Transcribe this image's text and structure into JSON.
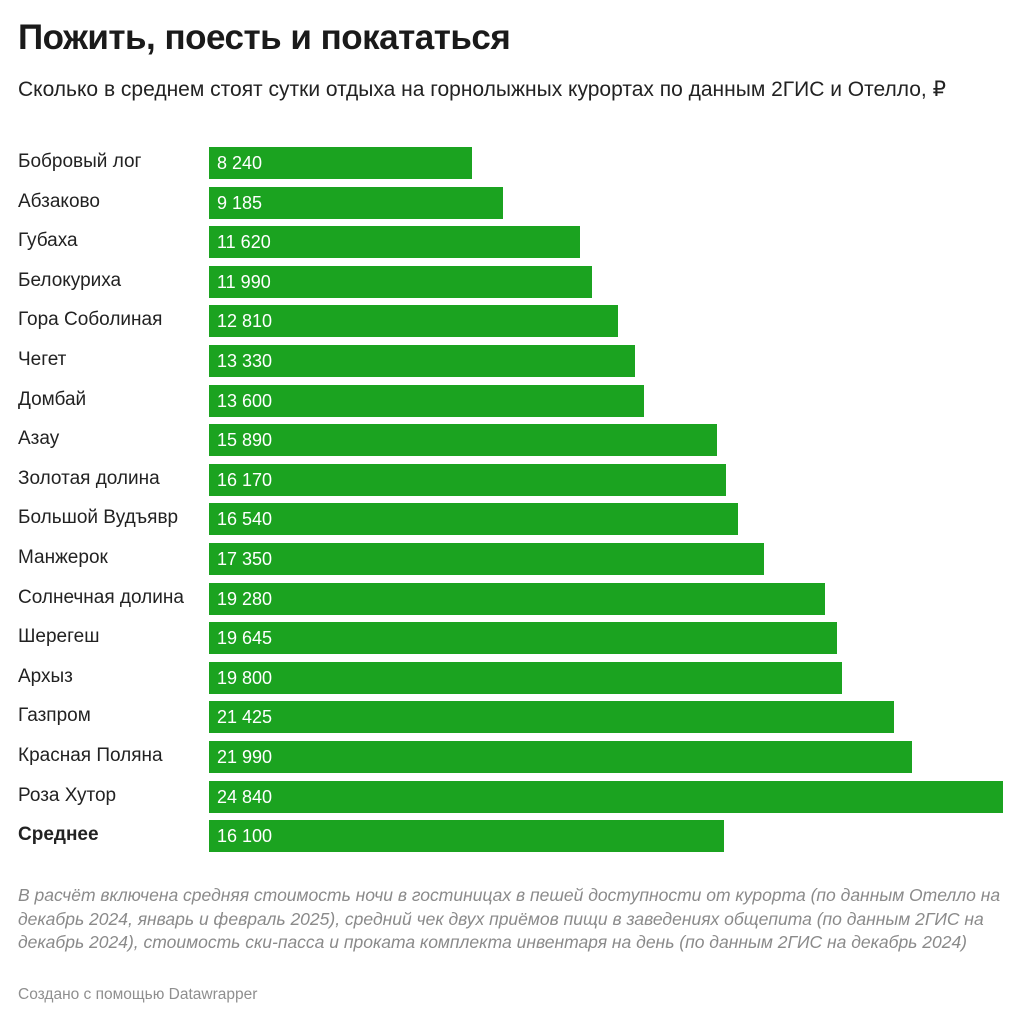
{
  "header": {
    "title": "Пожить, поесть и покататься",
    "subtitle": "Сколько в среднем стоят сутки отдыха на горнолыжных курортах по данным 2ГИС и Отелло, ₽"
  },
  "chart_data": {
    "type": "bar",
    "orientation": "horizontal",
    "title": "Пожить, поесть и покататься",
    "subtitle": "Сколько в среднем стоят сутки отдыха на горнолыжных курортах по данным 2ГИС и Отелло, ₽",
    "xlim": [
      0,
      24840
    ],
    "grid": false,
    "bar_color": "#1ba320",
    "categories": [
      "Бобровый лог",
      "Абзаково",
      "Губаха",
      "Белокуриха",
      "Гора Соболиная",
      "Чегет",
      "Домбай",
      "Азау",
      "Золотая долина",
      "Большой Вудъявр",
      "Манжерок",
      "Солнечная долина",
      "Шерегеш",
      "Архыз",
      "Газпром",
      "Красная Поляна",
      "Роза Хутор",
      "Среднее"
    ],
    "values": [
      8240,
      9185,
      11620,
      11990,
      12810,
      13330,
      13600,
      15890,
      16170,
      16540,
      17350,
      19280,
      19645,
      19800,
      21425,
      21990,
      24840,
      16100
    ],
    "value_labels": [
      "8 240",
      "9 185",
      "11 620",
      "11 990",
      "12 810",
      "13 330",
      "13 600",
      "15 890",
      "16 170",
      "16 540",
      "17 350",
      "19 280",
      "19 645",
      "19 800",
      "21 425",
      "21 990",
      "24 840",
      "16 100"
    ],
    "bold_categories": [
      "Среднее"
    ]
  },
  "footer": {
    "notes": "В расчёт включена средняя стоимость ночи в гостиницах в пешей доступности от курорта (по данным Отелло на декабрь 2024, январь и февраль 2025), средний чек двух приёмов пищи в заведениях общепита (по данным 2ГИС на декабрь 2024), стоимость ски-пасса и проката комплекта инвентаря на день (по данным 2ГИС на декабрь 2024)",
    "credit": "Создано с помощью Datawrapper"
  }
}
